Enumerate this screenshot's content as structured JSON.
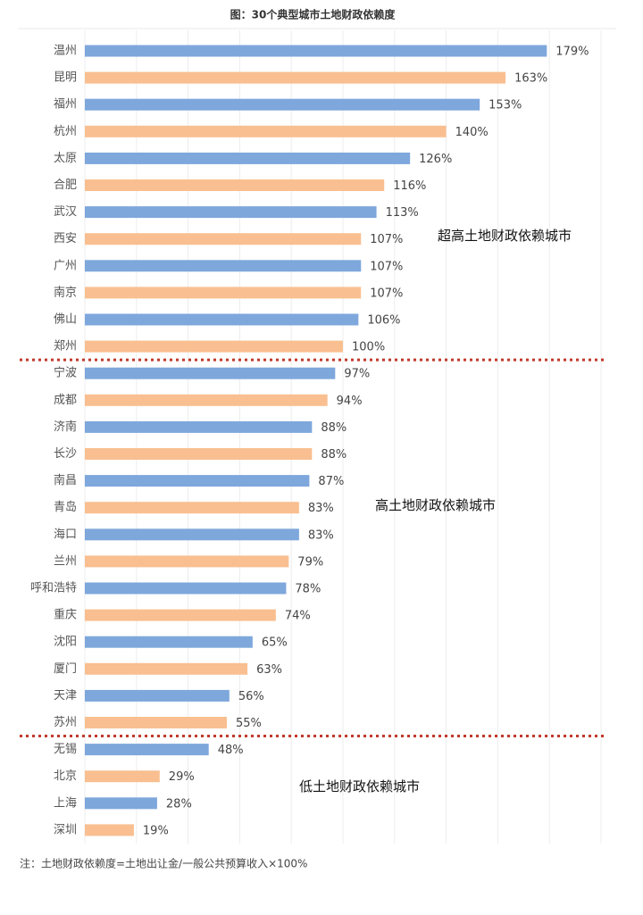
{
  "chart_data": {
    "type": "hbar",
    "title": "图：30个典型城市土地财政依赖度",
    "categories": [
      "温州",
      "昆明",
      "福州",
      "杭州",
      "太原",
      "合肥",
      "武汉",
      "西安",
      "广州",
      "南京",
      "佛山",
      "郑州",
      "宁波",
      "成都",
      "济南",
      "长沙",
      "南昌",
      "青岛",
      "海口",
      "兰州",
      "呼和浩特",
      "重庆",
      "沈阳",
      "厦门",
      "天津",
      "苏州",
      "无锡",
      "北京",
      "上海",
      "深圳"
    ],
    "values": [
      179,
      163,
      153,
      140,
      126,
      116,
      113,
      107,
      107,
      107,
      106,
      100,
      97,
      94,
      88,
      88,
      87,
      83,
      83,
      79,
      78,
      74,
      65,
      63,
      56,
      55,
      48,
      29,
      28,
      19
    ],
    "value_labels": [
      "179%",
      "163%",
      "153%",
      "140%",
      "126%",
      "116%",
      "113%",
      "107%",
      "107%",
      "107%",
      "106%",
      "100%",
      "97%",
      "94%",
      "88%",
      "88%",
      "87%",
      "83%",
      "83%",
      "79%",
      "78%",
      "74%",
      "65%",
      "63%",
      "56%",
      "55%",
      "48%",
      "29%",
      "28%",
      "19%"
    ],
    "colors": [
      "#7ea7dc",
      "#f9bf90",
      "#7ea7dc",
      "#f9bf90",
      "#7ea7dc",
      "#f9bf90",
      "#7ea7dc",
      "#f9bf90",
      "#7ea7dc",
      "#f9bf90",
      "#7ea7dc",
      "#f9bf90",
      "#7ea7dc",
      "#f9bf90",
      "#7ea7dc",
      "#f9bf90",
      "#7ea7dc",
      "#f9bf90",
      "#7ea7dc",
      "#f9bf90",
      "#7ea7dc",
      "#f9bf90",
      "#7ea7dc",
      "#f9bf90",
      "#7ea7dc",
      "#f9bf90",
      "#7ea7dc",
      "#f9bf90",
      "#7ea7dc",
      "#f9bf90"
    ],
    "xlim": [
      0,
      200
    ],
    "xticks": [
      0,
      20,
      40,
      60,
      80,
      100,
      120,
      140,
      160,
      180,
      200
    ],
    "grid": true,
    "annotations": [
      "超高土地财政依赖城市",
      "高土地财政依赖城市",
      "低土地财政依赖城市"
    ],
    "note": "注：土地财政依赖度=土地出让金/一般公共预算收入×100%"
  }
}
